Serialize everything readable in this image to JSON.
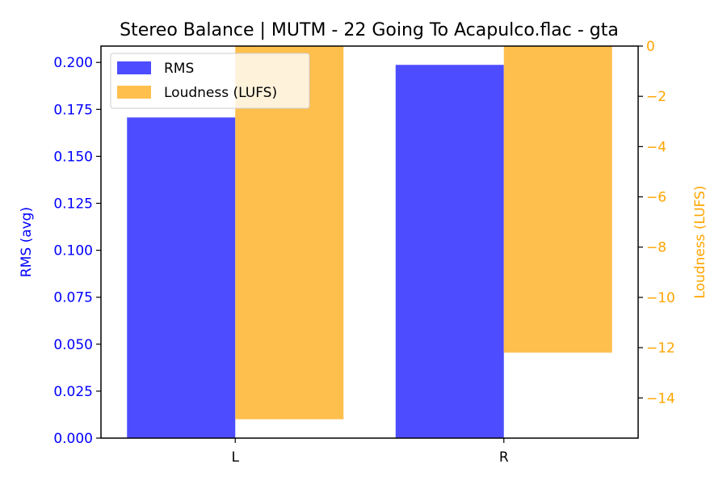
{
  "chart_data": {
    "type": "bar",
    "title": "Stereo Balance | MUTM - 22 Going To Acapulco.flac - gta",
    "categories": [
      "L",
      "R"
    ],
    "series": [
      {
        "name": "RMS",
        "axis": "left",
        "values": [
          0.1707,
          0.1987
        ],
        "color": "#4d4dff"
      },
      {
        "name": "Loudness (LUFS)",
        "axis": "right",
        "values": [
          -14.85,
          -12.2
        ],
        "color": "#ffbf4d"
      }
    ],
    "left_axis": {
      "label": "RMS (avg)",
      "color": "#0000ff",
      "ylim": [
        0,
        0.2087
      ],
      "ticks": [
        "0.000",
        "0.025",
        "0.050",
        "0.075",
        "0.100",
        "0.125",
        "0.150",
        "0.175",
        "0.200"
      ],
      "tick_values": [
        0,
        0.025,
        0.05,
        0.075,
        0.1,
        0.125,
        0.15,
        0.175,
        0.2
      ]
    },
    "right_axis": {
      "label": "Loudness (LUFS)",
      "color": "#ffa500",
      "ylim": [
        -15.6,
        0
      ],
      "ticks": [
        "0",
        "−2",
        "−4",
        "−6",
        "−8",
        "−10",
        "−12",
        "−14"
      ],
      "tick_values": [
        0,
        -2,
        -4,
        -6,
        -8,
        -10,
        -12,
        -14
      ]
    },
    "legend_position": "top-left",
    "grid": false
  }
}
